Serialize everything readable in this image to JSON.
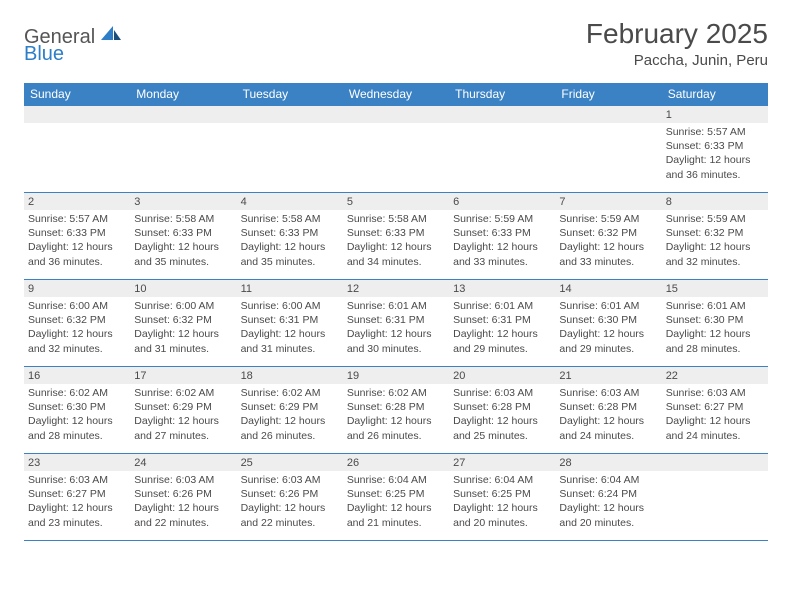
{
  "logo": {
    "general": "General",
    "blue": "Blue"
  },
  "title": "February 2025",
  "location": "Paccha, Junin, Peru",
  "colors": {
    "header_bg": "#3b82c4",
    "header_text": "#ffffff",
    "row_border": "#3b82c4",
    "day_band_bg": "#eeeeee",
    "text": "#4a4a4a",
    "logo_blue": "#2d7dc7"
  },
  "weekdays": [
    "Sunday",
    "Monday",
    "Tuesday",
    "Wednesday",
    "Thursday",
    "Friday",
    "Saturday"
  ],
  "weeks": [
    [
      {
        "n": "",
        "lines": [
          "",
          "",
          "",
          ""
        ]
      },
      {
        "n": "",
        "lines": [
          "",
          "",
          "",
          ""
        ]
      },
      {
        "n": "",
        "lines": [
          "",
          "",
          "",
          ""
        ]
      },
      {
        "n": "",
        "lines": [
          "",
          "",
          "",
          ""
        ]
      },
      {
        "n": "",
        "lines": [
          "",
          "",
          "",
          ""
        ]
      },
      {
        "n": "",
        "lines": [
          "",
          "",
          "",
          ""
        ]
      },
      {
        "n": "1",
        "lines": [
          "Sunrise: 5:57 AM",
          "Sunset: 6:33 PM",
          "Daylight: 12 hours",
          "and 36 minutes."
        ]
      }
    ],
    [
      {
        "n": "2",
        "lines": [
          "Sunrise: 5:57 AM",
          "Sunset: 6:33 PM",
          "Daylight: 12 hours",
          "and 36 minutes."
        ]
      },
      {
        "n": "3",
        "lines": [
          "Sunrise: 5:58 AM",
          "Sunset: 6:33 PM",
          "Daylight: 12 hours",
          "and 35 minutes."
        ]
      },
      {
        "n": "4",
        "lines": [
          "Sunrise: 5:58 AM",
          "Sunset: 6:33 PM",
          "Daylight: 12 hours",
          "and 35 minutes."
        ]
      },
      {
        "n": "5",
        "lines": [
          "Sunrise: 5:58 AM",
          "Sunset: 6:33 PM",
          "Daylight: 12 hours",
          "and 34 minutes."
        ]
      },
      {
        "n": "6",
        "lines": [
          "Sunrise: 5:59 AM",
          "Sunset: 6:33 PM",
          "Daylight: 12 hours",
          "and 33 minutes."
        ]
      },
      {
        "n": "7",
        "lines": [
          "Sunrise: 5:59 AM",
          "Sunset: 6:32 PM",
          "Daylight: 12 hours",
          "and 33 minutes."
        ]
      },
      {
        "n": "8",
        "lines": [
          "Sunrise: 5:59 AM",
          "Sunset: 6:32 PM",
          "Daylight: 12 hours",
          "and 32 minutes."
        ]
      }
    ],
    [
      {
        "n": "9",
        "lines": [
          "Sunrise: 6:00 AM",
          "Sunset: 6:32 PM",
          "Daylight: 12 hours",
          "and 32 minutes."
        ]
      },
      {
        "n": "10",
        "lines": [
          "Sunrise: 6:00 AM",
          "Sunset: 6:32 PM",
          "Daylight: 12 hours",
          "and 31 minutes."
        ]
      },
      {
        "n": "11",
        "lines": [
          "Sunrise: 6:00 AM",
          "Sunset: 6:31 PM",
          "Daylight: 12 hours",
          "and 31 minutes."
        ]
      },
      {
        "n": "12",
        "lines": [
          "Sunrise: 6:01 AM",
          "Sunset: 6:31 PM",
          "Daylight: 12 hours",
          "and 30 minutes."
        ]
      },
      {
        "n": "13",
        "lines": [
          "Sunrise: 6:01 AM",
          "Sunset: 6:31 PM",
          "Daylight: 12 hours",
          "and 29 minutes."
        ]
      },
      {
        "n": "14",
        "lines": [
          "Sunrise: 6:01 AM",
          "Sunset: 6:30 PM",
          "Daylight: 12 hours",
          "and 29 minutes."
        ]
      },
      {
        "n": "15",
        "lines": [
          "Sunrise: 6:01 AM",
          "Sunset: 6:30 PM",
          "Daylight: 12 hours",
          "and 28 minutes."
        ]
      }
    ],
    [
      {
        "n": "16",
        "lines": [
          "Sunrise: 6:02 AM",
          "Sunset: 6:30 PM",
          "Daylight: 12 hours",
          "and 28 minutes."
        ]
      },
      {
        "n": "17",
        "lines": [
          "Sunrise: 6:02 AM",
          "Sunset: 6:29 PM",
          "Daylight: 12 hours",
          "and 27 minutes."
        ]
      },
      {
        "n": "18",
        "lines": [
          "Sunrise: 6:02 AM",
          "Sunset: 6:29 PM",
          "Daylight: 12 hours",
          "and 26 minutes."
        ]
      },
      {
        "n": "19",
        "lines": [
          "Sunrise: 6:02 AM",
          "Sunset: 6:28 PM",
          "Daylight: 12 hours",
          "and 26 minutes."
        ]
      },
      {
        "n": "20",
        "lines": [
          "Sunrise: 6:03 AM",
          "Sunset: 6:28 PM",
          "Daylight: 12 hours",
          "and 25 minutes."
        ]
      },
      {
        "n": "21",
        "lines": [
          "Sunrise: 6:03 AM",
          "Sunset: 6:28 PM",
          "Daylight: 12 hours",
          "and 24 minutes."
        ]
      },
      {
        "n": "22",
        "lines": [
          "Sunrise: 6:03 AM",
          "Sunset: 6:27 PM",
          "Daylight: 12 hours",
          "and 24 minutes."
        ]
      }
    ],
    [
      {
        "n": "23",
        "lines": [
          "Sunrise: 6:03 AM",
          "Sunset: 6:27 PM",
          "Daylight: 12 hours",
          "and 23 minutes."
        ]
      },
      {
        "n": "24",
        "lines": [
          "Sunrise: 6:03 AM",
          "Sunset: 6:26 PM",
          "Daylight: 12 hours",
          "and 22 minutes."
        ]
      },
      {
        "n": "25",
        "lines": [
          "Sunrise: 6:03 AM",
          "Sunset: 6:26 PM",
          "Daylight: 12 hours",
          "and 22 minutes."
        ]
      },
      {
        "n": "26",
        "lines": [
          "Sunrise: 6:04 AM",
          "Sunset: 6:25 PM",
          "Daylight: 12 hours",
          "and 21 minutes."
        ]
      },
      {
        "n": "27",
        "lines": [
          "Sunrise: 6:04 AM",
          "Sunset: 6:25 PM",
          "Daylight: 12 hours",
          "and 20 minutes."
        ]
      },
      {
        "n": "28",
        "lines": [
          "Sunrise: 6:04 AM",
          "Sunset: 6:24 PM",
          "Daylight: 12 hours",
          "and 20 minutes."
        ]
      },
      {
        "n": "",
        "lines": [
          "",
          "",
          "",
          ""
        ]
      }
    ]
  ]
}
